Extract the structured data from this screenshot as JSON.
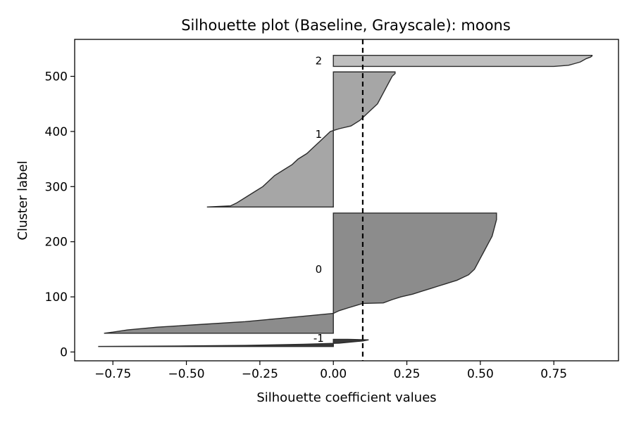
{
  "chart_data": {
    "type": "area",
    "title": "Silhouette plot (Baseline, Grayscale): moons",
    "xlabel": "Silhouette coefficient values",
    "ylabel": "Cluster label",
    "xlim": [
      -0.88,
      0.97
    ],
    "ylim": [
      -16,
      567
    ],
    "x_ticks": [
      -0.75,
      -0.5,
      -0.25,
      0.0,
      0.25,
      0.5,
      0.75
    ],
    "x_tick_labels": [
      "−0.75",
      "−0.50",
      "−0.25",
      "0.00",
      "0.25",
      "0.50",
      "0.75"
    ],
    "y_ticks": [
      0,
      100,
      200,
      300,
      400,
      500
    ],
    "y_tick_labels": [
      "0",
      "100",
      "200",
      "300",
      "400",
      "500"
    ],
    "reference_line": {
      "x": 0.1,
      "style": "dashed",
      "color": "#000000"
    },
    "grid": false,
    "clusters": [
      {
        "label": "-1",
        "color": "#3a3a3a",
        "label_pos": [
          -0.05,
          25
        ],
        "profile": [
          [
            10,
            -0.8
          ],
          [
            11,
            -0.5
          ],
          [
            12,
            -0.3
          ],
          [
            14,
            -0.1
          ],
          [
            16,
            0.02
          ],
          [
            18,
            0.06
          ],
          [
            20,
            0.1
          ],
          [
            22,
            0.12
          ],
          [
            23,
            0.05
          ]
        ]
      },
      {
        "label": "0",
        "color": "#8c8c8c",
        "label_pos": [
          -0.05,
          150
        ],
        "profile": [
          [
            34,
            -0.78
          ],
          [
            36,
            -0.75
          ],
          [
            40,
            -0.7
          ],
          [
            45,
            -0.6
          ],
          [
            50,
            -0.45
          ],
          [
            55,
            -0.3
          ],
          [
            60,
            -0.2
          ],
          [
            65,
            -0.1
          ],
          [
            70,
            0.0
          ],
          [
            75,
            0.02
          ],
          [
            80,
            0.05
          ],
          [
            88,
            0.1
          ],
          [
            89,
            0.17
          ],
          [
            95,
            0.2
          ],
          [
            100,
            0.23
          ],
          [
            105,
            0.27
          ],
          [
            110,
            0.3
          ],
          [
            115,
            0.33
          ],
          [
            120,
            0.36
          ],
          [
            125,
            0.39
          ],
          [
            130,
            0.42
          ],
          [
            135,
            0.44
          ],
          [
            140,
            0.46
          ],
          [
            150,
            0.48
          ],
          [
            160,
            0.49
          ],
          [
            170,
            0.5
          ],
          [
            180,
            0.51
          ],
          [
            190,
            0.52
          ],
          [
            200,
            0.53
          ],
          [
            210,
            0.54
          ],
          [
            220,
            0.545
          ],
          [
            230,
            0.55
          ],
          [
            240,
            0.555
          ],
          [
            250,
            0.555
          ],
          [
            252,
            0.555
          ]
        ]
      },
      {
        "label": "1",
        "color": "#a6a6a6",
        "label_pos": [
          -0.05,
          395
        ],
        "profile": [
          [
            263,
            -0.43
          ],
          [
            265,
            -0.35
          ],
          [
            270,
            -0.33
          ],
          [
            280,
            -0.3
          ],
          [
            290,
            -0.27
          ],
          [
            300,
            -0.24
          ],
          [
            310,
            -0.22
          ],
          [
            320,
            -0.2
          ],
          [
            330,
            -0.17
          ],
          [
            340,
            -0.14
          ],
          [
            350,
            -0.12
          ],
          [
            360,
            -0.09
          ],
          [
            370,
            -0.07
          ],
          [
            380,
            -0.05
          ],
          [
            390,
            -0.03
          ],
          [
            400,
            -0.01
          ],
          [
            405,
            0.02
          ],
          [
            410,
            0.06
          ],
          [
            420,
            0.09
          ],
          [
            430,
            0.11
          ],
          [
            440,
            0.13
          ],
          [
            450,
            0.15
          ],
          [
            460,
            0.16
          ],
          [
            470,
            0.17
          ],
          [
            480,
            0.18
          ],
          [
            490,
            0.19
          ],
          [
            500,
            0.2
          ],
          [
            505,
            0.21
          ],
          [
            508,
            0.21
          ]
        ]
      },
      {
        "label": "2",
        "color": "#bfbfbf",
        "label_pos": [
          -0.05,
          528
        ],
        "profile": [
          [
            518,
            0.75
          ],
          [
            520,
            0.8
          ],
          [
            523,
            0.82
          ],
          [
            526,
            0.84
          ],
          [
            529,
            0.85
          ],
          [
            532,
            0.86
          ],
          [
            535,
            0.875
          ],
          [
            537,
            0.88
          ],
          [
            538,
            0.88
          ]
        ]
      }
    ]
  }
}
